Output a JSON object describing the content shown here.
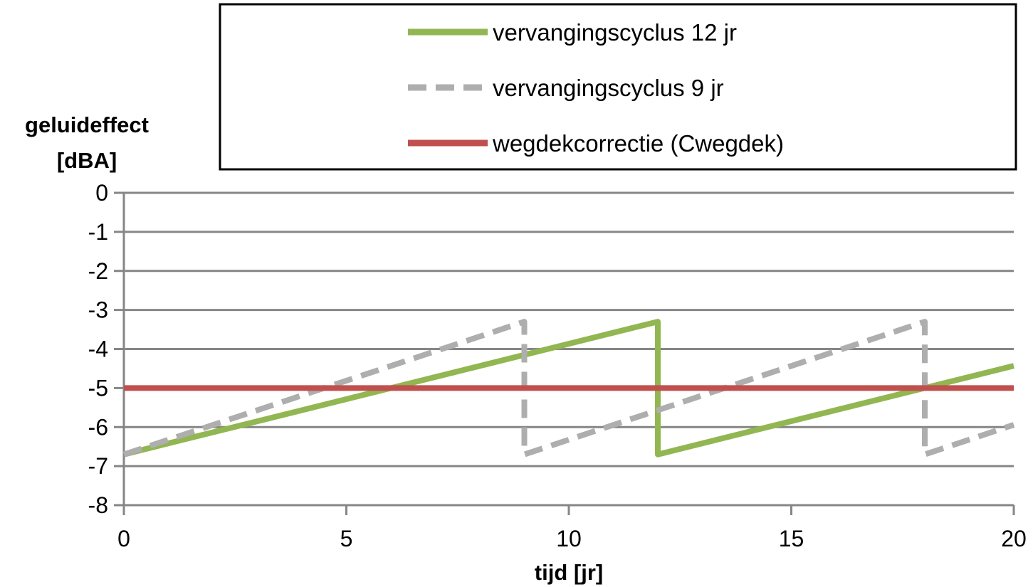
{
  "chart_data": {
    "type": "line",
    "xlabel": "tijd [jr]",
    "ylabel_lines": [
      "geluideffect",
      "[dBA]"
    ],
    "xlim": [
      0,
      20
    ],
    "ylim": [
      -8,
      0
    ],
    "x_ticks": [
      0,
      5,
      10,
      15,
      20
    ],
    "y_ticks": [
      0,
      -1,
      -2,
      -3,
      -4,
      -5,
      -6,
      -7,
      -8
    ],
    "grid": "horizontal",
    "legend_position": "top-right",
    "series": [
      {
        "name": "vervangingscyclus 12 jr",
        "color": "#92b651",
        "style": "solid",
        "x": [
          0,
          12,
          12,
          20
        ],
        "y": [
          -6.7,
          -3.3,
          -6.7,
          -4.43
        ]
      },
      {
        "name": "vervangingscyclus 9 jr",
        "color": "#aeaeae",
        "style": "dashed",
        "x": [
          0,
          9,
          9,
          18,
          18,
          20
        ],
        "y": [
          -6.7,
          -3.3,
          -6.7,
          -3.3,
          -6.7,
          -5.94
        ]
      },
      {
        "name": "wegdekcorrectie (Cwegdek)",
        "color": "#c0504d",
        "style": "solid",
        "x": [
          0,
          20
        ],
        "y": [
          -5,
          -5
        ]
      }
    ]
  }
}
